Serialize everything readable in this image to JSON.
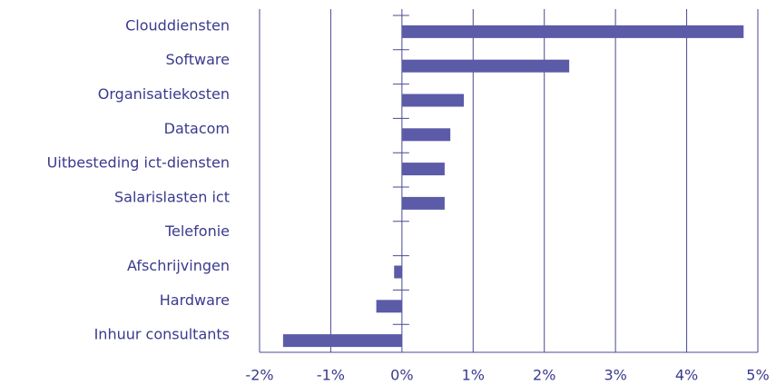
{
  "chart_data": {
    "type": "barh",
    "categories": [
      "Clouddiensten",
      "Software",
      "Organisatiekosten",
      "Datacom",
      "Uitbesteding ict-diensten",
      "Salarislasten ict",
      "Telefonie",
      "Afschrijvingen",
      "Hardware",
      "Inhuur consultants"
    ],
    "values": [
      4.8,
      2.35,
      0.87,
      0.68,
      0.6,
      0.6,
      0,
      -0.11,
      -0.36,
      -1.67
    ],
    "color": "#5b5ba8",
    "xlim": [
      -2,
      5
    ],
    "xticks": [
      {
        "value": -2,
        "label": "-2%"
      },
      {
        "value": -1,
        "label": "-1%"
      },
      {
        "value": 0,
        "label": "0%"
      },
      {
        "value": 1,
        "label": "1%"
      },
      {
        "value": 2,
        "label": "2%"
      },
      {
        "value": 3,
        "label": "3%"
      },
      {
        "value": 4,
        "label": "4%"
      },
      {
        "value": 5,
        "label": "5%"
      }
    ],
    "grid": true
  }
}
